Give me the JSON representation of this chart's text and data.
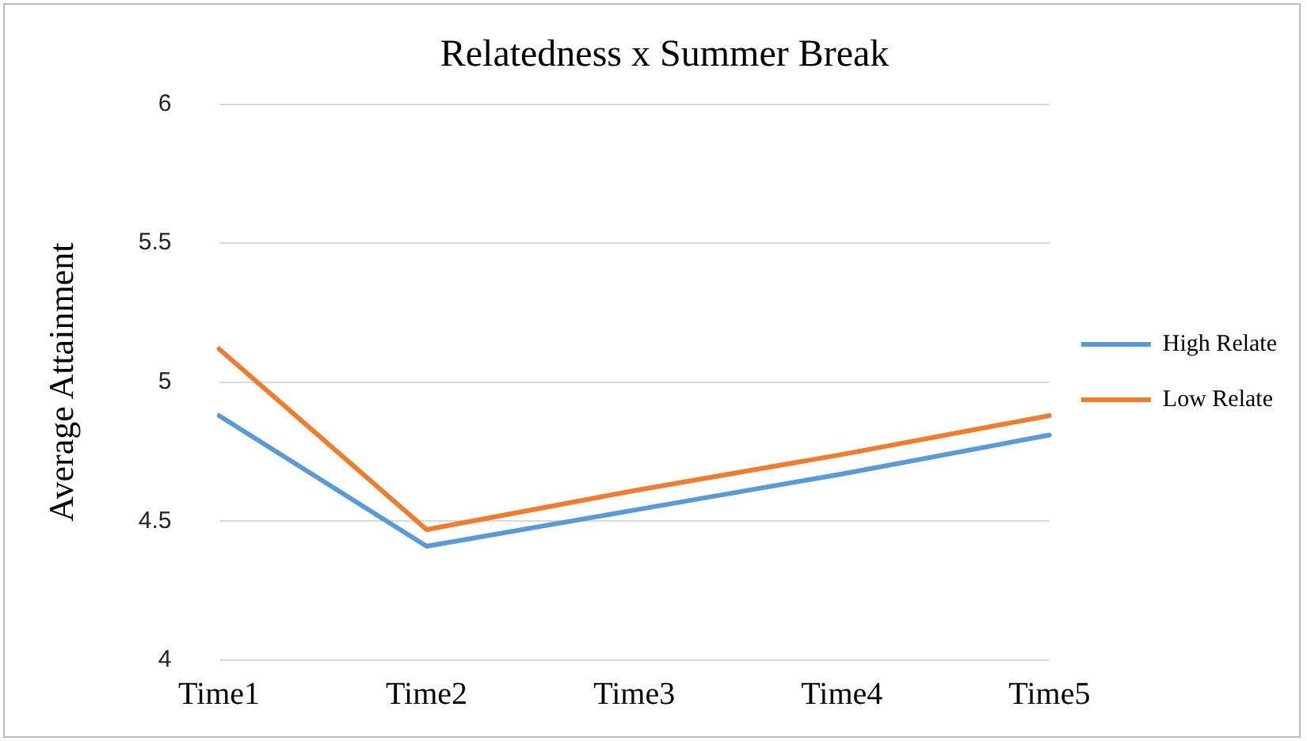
{
  "chart_data": {
    "type": "line",
    "title": "Relatedness x Summer Break",
    "ylabel": "Average Attainment",
    "categories": [
      "Time1",
      "Time2",
      "Time3",
      "Time4",
      "Time5"
    ],
    "series": [
      {
        "name": "High Relate",
        "color": "#5b9bd5",
        "values": [
          4.88,
          4.41,
          4.54,
          4.67,
          4.81
        ]
      },
      {
        "name": "Low Relate",
        "color": "#ed7d31",
        "values": [
          5.12,
          4.47,
          4.61,
          4.74,
          4.88
        ]
      }
    ],
    "ylim": [
      4,
      6
    ],
    "yticks": [
      4,
      4.5,
      5,
      5.5,
      6
    ],
    "grid": "y",
    "legend": "right",
    "marker": "none",
    "line_style": "solid"
  }
}
